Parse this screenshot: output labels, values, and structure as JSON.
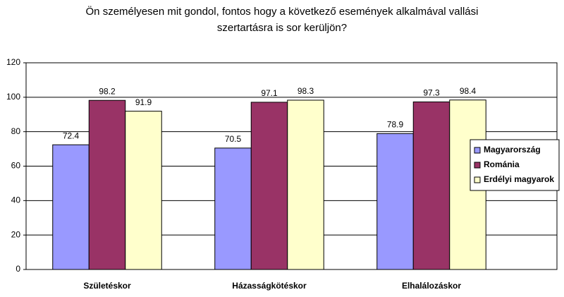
{
  "chart_data": {
    "type": "bar",
    "title": [
      "Ön személyesen mit gondol, fontos hogy a következő események alkalmával vallási",
      "szertartásra is sor kerüljön?"
    ],
    "categories": [
      "Születéskor",
      "Házasságkötéskor",
      "Elhalálozáskor"
    ],
    "series": [
      {
        "name": "Magyarország",
        "color": "#9999ff",
        "values": [
          72.4,
          70.5,
          78.9
        ]
      },
      {
        "name": "Románia",
        "color": "#993366",
        "values": [
          98.2,
          97.1,
          97.3
        ]
      },
      {
        "name": "Erdélyi magyarok",
        "color": "#ffffcc",
        "values": [
          91.9,
          98.3,
          98.4
        ]
      }
    ],
    "ylim": [
      0,
      120
    ],
    "yticks": [
      0,
      20,
      40,
      60,
      80,
      100,
      120
    ],
    "grid": true,
    "legend": "right"
  }
}
